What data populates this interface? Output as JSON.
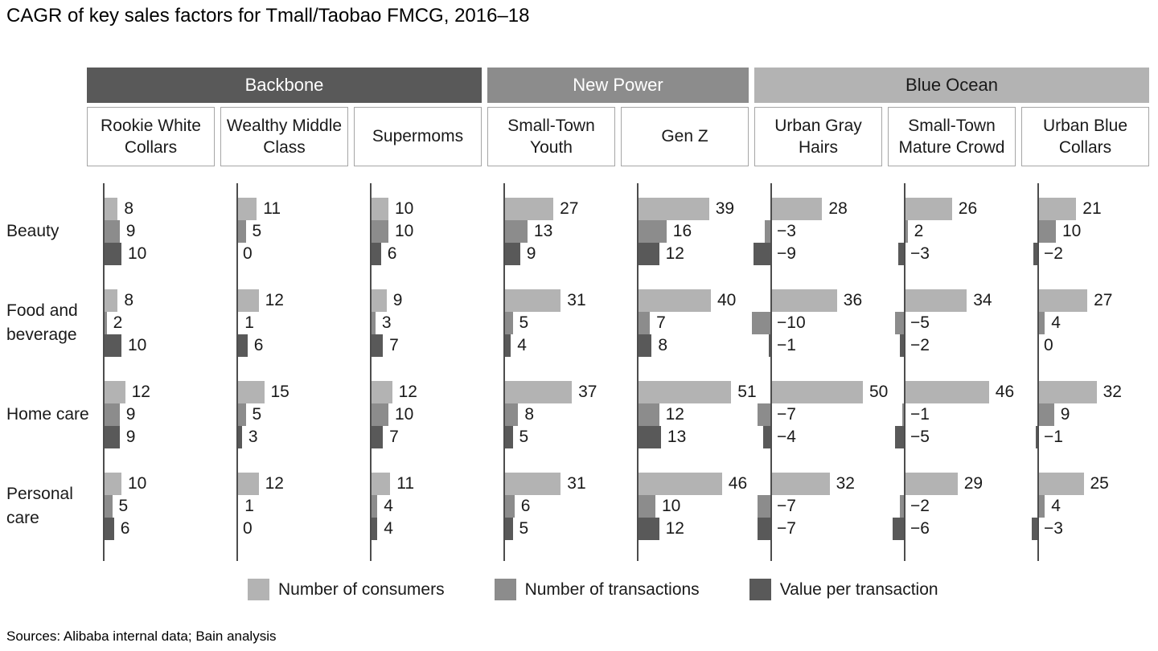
{
  "title": "CAGR of key sales factors for Tmall/Taobao FMCG, 2016–18",
  "sources": "Sources: Alibaba internal data; Bain analysis",
  "legend": [
    {
      "label": "Number of consumers",
      "color": "#b3b3b3"
    },
    {
      "label": "Number of transactions",
      "color": "#8c8c8c"
    },
    {
      "label": "Value per transaction",
      "color": "#595959"
    }
  ],
  "chart_data": {
    "type": "bar",
    "orientation": "horizontal",
    "title": "CAGR of key sales factors for Tmall/Taobao FMCG, 2016–18",
    "categories": [
      "Beauty",
      "Food and beverage",
      "Home care",
      "Personal care"
    ],
    "series_names": [
      "Number of consumers",
      "Number of transactions",
      "Value per transaction"
    ],
    "series_colors": [
      "#b3b3b3",
      "#8c8c8c",
      "#595959"
    ],
    "grid": false,
    "legend_position": "bottom",
    "groups": [
      {
        "label": "Backbone",
        "band_color": "#595959",
        "band_text_color": "#ffffff",
        "segments": [
          "Rookie White Collars",
          "Wealthy Middle Class",
          "Supermoms"
        ]
      },
      {
        "label": "New Power",
        "band_color": "#8c8c8c",
        "band_text_color": "#ffffff",
        "segments": [
          "Small-Town Youth",
          "Gen Z"
        ]
      },
      {
        "label": "Blue Ocean",
        "band_color": "#b3b3b3",
        "band_text_color": "#1a1a1a",
        "segments": [
          "Urban Gray Hairs",
          "Small-Town Mature Crowd",
          "Urban Blue Collars"
        ]
      }
    ],
    "columns": [
      {
        "segment": "Rookie White Collars",
        "group": "Backbone",
        "values": [
          [
            8,
            9,
            10
          ],
          [
            8,
            2,
            10
          ],
          [
            12,
            9,
            9
          ],
          [
            10,
            5,
            6
          ]
        ]
      },
      {
        "segment": "Wealthy Middle Class",
        "group": "Backbone",
        "values": [
          [
            11,
            5,
            0
          ],
          [
            12,
            1,
            6
          ],
          [
            15,
            5,
            3
          ],
          [
            12,
            1,
            0
          ]
        ]
      },
      {
        "segment": "Supermoms",
        "group": "Backbone",
        "values": [
          [
            10,
            10,
            6
          ],
          [
            9,
            3,
            7
          ],
          [
            12,
            10,
            7
          ],
          [
            11,
            4,
            4
          ]
        ]
      },
      {
        "segment": "Small-Town Youth",
        "group": "New Power",
        "values": [
          [
            27,
            13,
            9
          ],
          [
            31,
            5,
            4
          ],
          [
            37,
            8,
            5
          ],
          [
            31,
            6,
            5
          ]
        ]
      },
      {
        "segment": "Gen Z",
        "group": "New Power",
        "values": [
          [
            39,
            16,
            12
          ],
          [
            40,
            7,
            8
          ],
          [
            51,
            12,
            13
          ],
          [
            46,
            10,
            12
          ]
        ]
      },
      {
        "segment": "Urban Gray Hairs",
        "group": "Blue Ocean",
        "values": [
          [
            28,
            -3,
            -9
          ],
          [
            36,
            -10,
            -1
          ],
          [
            50,
            -7,
            -4
          ],
          [
            32,
            -7,
            -7
          ]
        ]
      },
      {
        "segment": "Small-Town Mature Crowd",
        "group": "Blue Ocean",
        "values": [
          [
            26,
            2,
            -3
          ],
          [
            34,
            -5,
            -2
          ],
          [
            46,
            -1,
            -5
          ],
          [
            29,
            -2,
            -6
          ]
        ]
      },
      {
        "segment": "Urban Blue Collars",
        "group": "Blue Ocean",
        "values": [
          [
            21,
            10,
            -2
          ],
          [
            27,
            4,
            0
          ],
          [
            32,
            9,
            -1
          ],
          [
            25,
            4,
            -3
          ]
        ]
      }
    ]
  }
}
